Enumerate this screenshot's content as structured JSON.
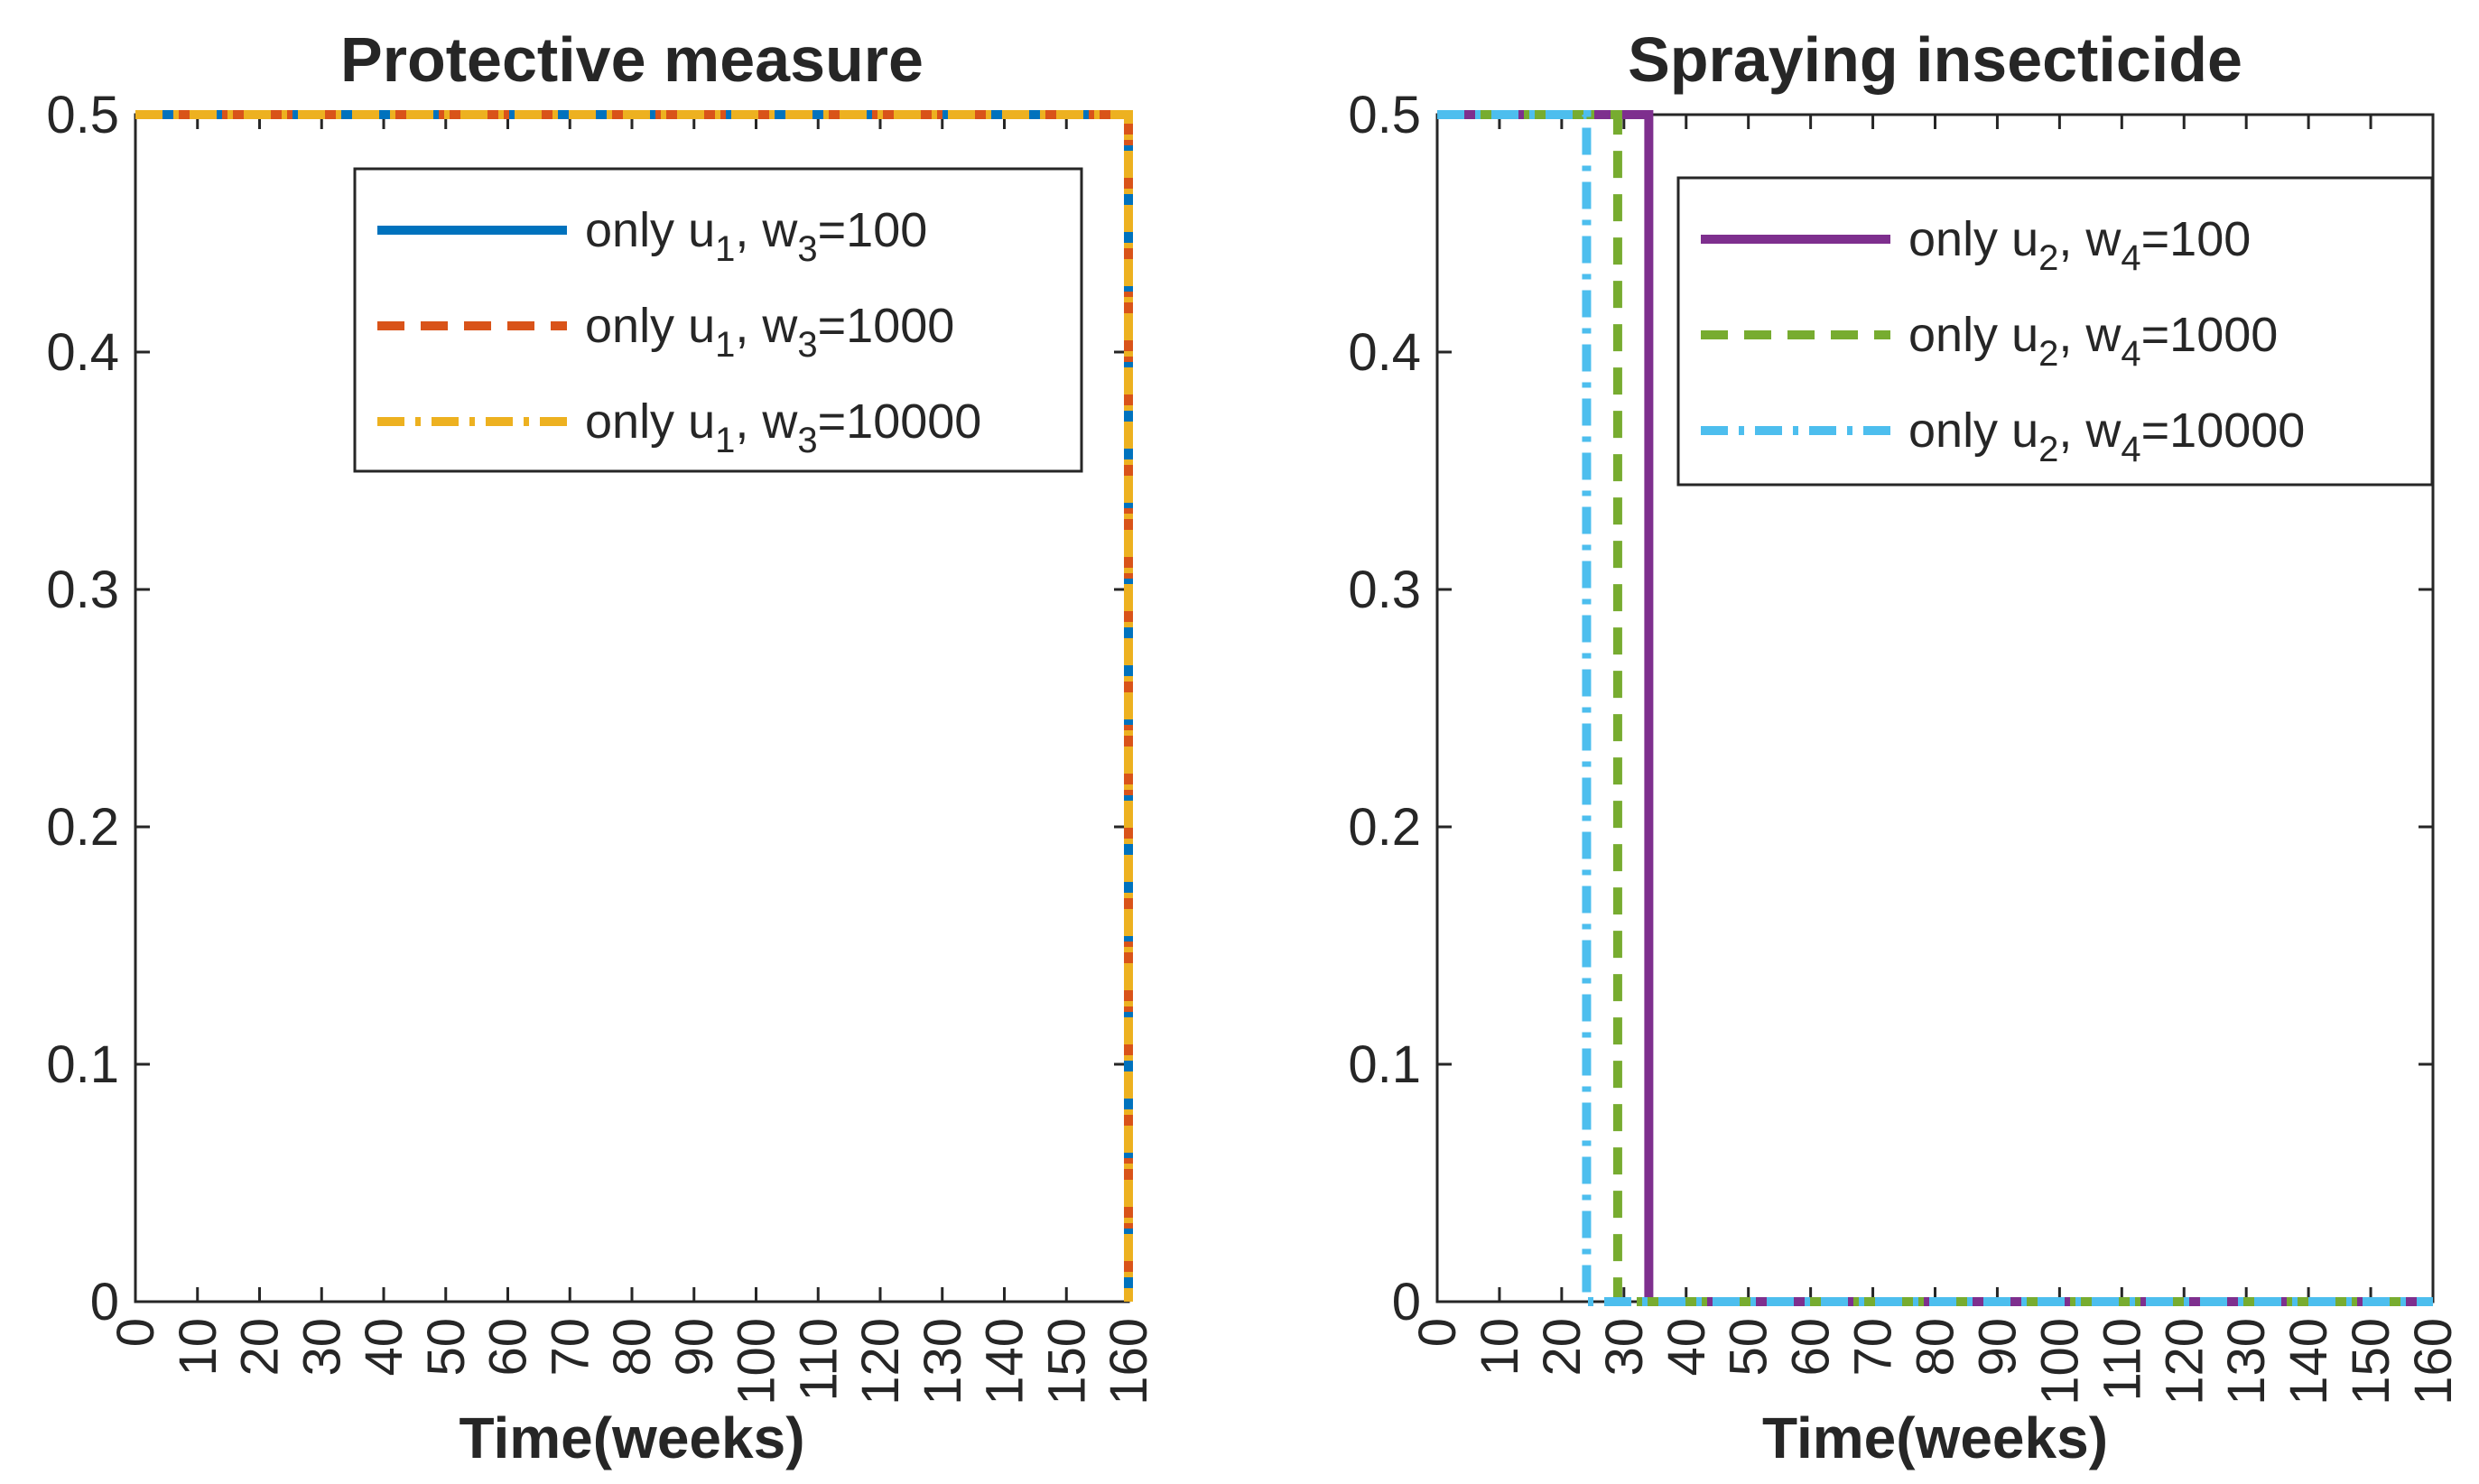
{
  "chart_data": [
    {
      "type": "line",
      "title": "Protective measure",
      "xlabel": "Time(weeks)",
      "ylabel": "",
      "xlim": [
        0,
        160
      ],
      "ylim": [
        0,
        0.5
      ],
      "xticks": [
        "0",
        "10",
        "20",
        "30",
        "40",
        "50",
        "60",
        "70",
        "80",
        "90",
        "100",
        "110",
        "120",
        "130",
        "140",
        "150",
        "160"
      ],
      "yticks": [
        "0",
        "0.1",
        "0.2",
        "0.3",
        "0.4",
        "0.5"
      ],
      "legend_position": "top-right",
      "series": [
        {
          "name": "only u1, w3=100",
          "label": {
            "pre": "only u",
            "sub1": "1",
            "mid": ", w",
            "sub2": "3",
            "post": "=100"
          },
          "color": "#0072BD",
          "style": "solid",
          "x": [
            0,
            160,
            160
          ],
          "y": [
            0.5,
            0.5,
            0
          ]
        },
        {
          "name": "only u1, w3=1000",
          "label": {
            "pre": "only u",
            "sub1": "1",
            "mid": ", w",
            "sub2": "3",
            "post": "=1000"
          },
          "color": "#D95319",
          "style": "dashed",
          "x": [
            0,
            160,
            160
          ],
          "y": [
            0.5,
            0.5,
            0
          ]
        },
        {
          "name": "only u1, w3=10000",
          "label": {
            "pre": "only u",
            "sub1": "1",
            "mid": ", w",
            "sub2": "3",
            "post": "=10000"
          },
          "color": "#EDB120",
          "style": "dashdot",
          "x": [
            0,
            160,
            160
          ],
          "y": [
            0.5,
            0.5,
            0
          ]
        }
      ]
    },
    {
      "type": "line",
      "title": "Spraying insecticide",
      "xlabel": "Time(weeks)",
      "ylabel": "",
      "xlim": [
        0,
        160
      ],
      "ylim": [
        0,
        0.5
      ],
      "xticks": [
        "0",
        "10",
        "20",
        "30",
        "40",
        "50",
        "60",
        "70",
        "80",
        "90",
        "100",
        "110",
        "120",
        "130",
        "140",
        "150",
        "160"
      ],
      "yticks": [
        "0",
        "0.1",
        "0.2",
        "0.3",
        "0.4",
        "0.5"
      ],
      "legend_position": "top-right",
      "series": [
        {
          "name": "only u2, w4=100",
          "label": {
            "pre": "only u",
            "sub1": "2",
            "mid": ", w",
            "sub2": "4",
            "post": "=100"
          },
          "color": "#7E2F8E",
          "style": "solid",
          "x": [
            0,
            34,
            34,
            160
          ],
          "y": [
            0.5,
            0.5,
            0,
            0
          ]
        },
        {
          "name": "only u2, w4=1000",
          "label": {
            "pre": "only u",
            "sub1": "2",
            "mid": ", w",
            "sub2": "4",
            "post": "=1000"
          },
          "color": "#77AC30",
          "style": "dashed",
          "x": [
            0,
            29,
            29,
            160
          ],
          "y": [
            0.5,
            0.5,
            0,
            0
          ]
        },
        {
          "name": "only u2, w4=10000",
          "label": {
            "pre": "only u",
            "sub1": "2",
            "mid": ", w",
            "sub2": "4",
            "post": "=10000"
          },
          "color": "#4DBEEE",
          "style": "dashdot",
          "x": [
            0,
            24,
            24,
            160
          ],
          "y": [
            0.5,
            0.5,
            0,
            0
          ]
        }
      ]
    }
  ]
}
